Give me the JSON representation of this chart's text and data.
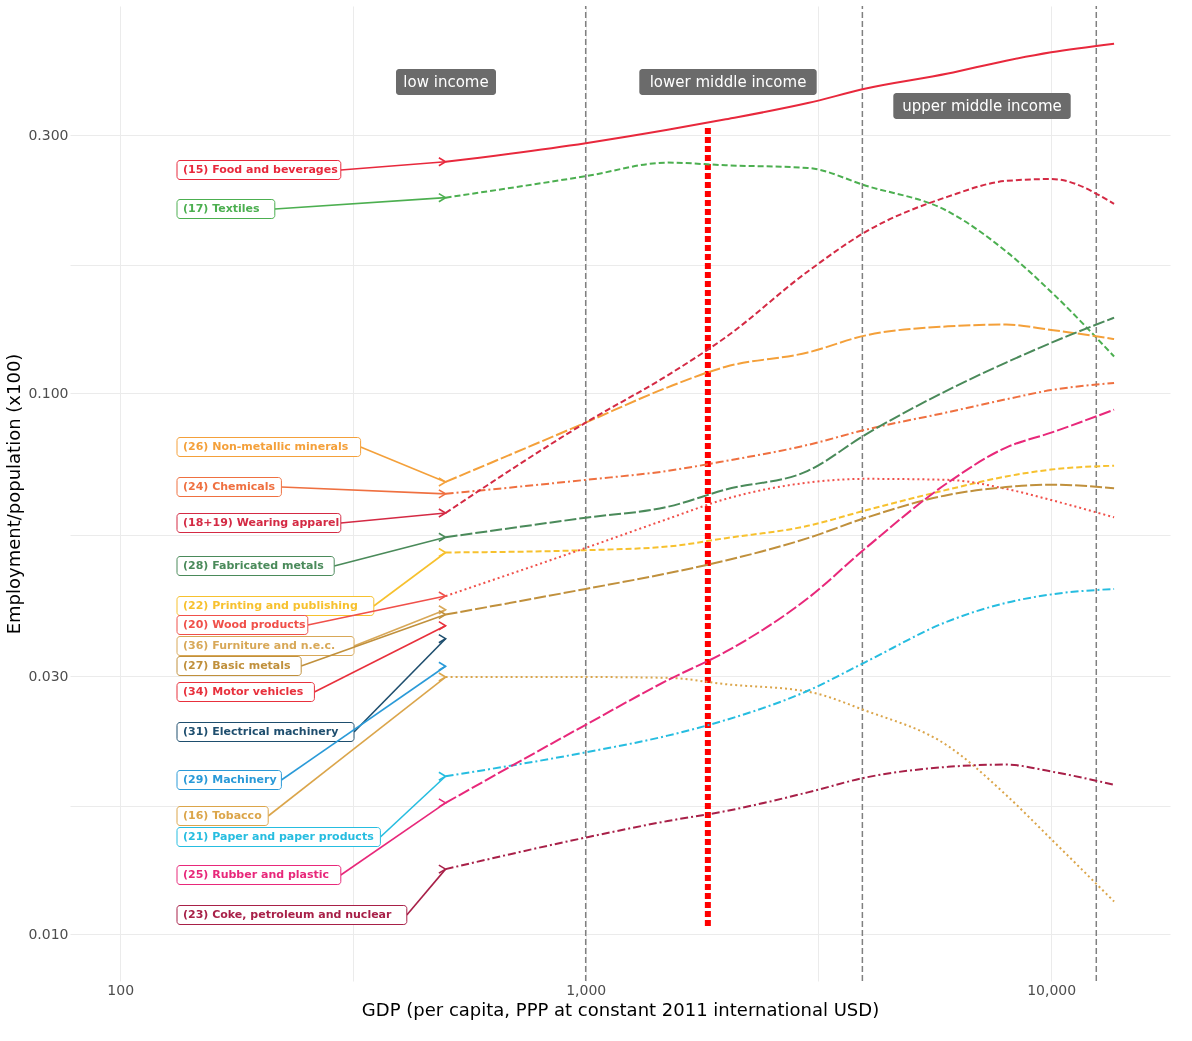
{
  "chart_data": {
    "type": "line",
    "xlabel": "GDP (per capita, PPP at constant 2011 international USD)",
    "ylabel": "Employment/population (x100)",
    "log": "xy",
    "grid": true,
    "legend": false,
    "xlim": [
      78,
      18000
    ],
    "ylim": [
      0.0082,
      0.52
    ],
    "xticks": [
      {
        "value": 100,
        "label": "100"
      },
      {
        "value": 316.2,
        "label": null
      },
      {
        "value": 1000,
        "label": "1,000"
      },
      {
        "value": 3162,
        "label": null
      },
      {
        "value": 10000,
        "label": "10,000"
      }
    ],
    "yticks": [
      {
        "value": 0.01,
        "label": "0.010"
      },
      {
        "value": 0.0173,
        "label": null
      },
      {
        "value": 0.03,
        "label": "0.030"
      },
      {
        "value": 0.0548,
        "label": null
      },
      {
        "value": 0.1,
        "label": "0.100"
      },
      {
        "value": 0.173,
        "label": null
      },
      {
        "value": 0.3,
        "label": "0.300"
      }
    ],
    "x": [
      500,
      1000,
      1500,
      2000,
      3000,
      4000,
      6000,
      8000,
      10000,
      13650
    ],
    "series": [
      {
        "name": "(15) Food and beverages",
        "color": "#e8283c",
        "line_style": "solid",
        "values": [
          0.268,
          0.29,
          0.307,
          0.321,
          0.344,
          0.366,
          0.39,
          0.412,
          0.427,
          0.443
        ]
      },
      {
        "name": "(17) Textiles",
        "color": "#4caf50",
        "line_style": "dashed",
        "values": [
          0.23,
          0.252,
          0.267,
          0.264,
          0.261,
          0.242,
          0.217,
          0.183,
          0.154,
          0.117
        ]
      },
      {
        "name": "(26) Non-metallic minerals",
        "color": "#f4a03a",
        "line_style": "longdash",
        "values": [
          0.0686,
          0.0883,
          0.1026,
          0.112,
          0.119,
          0.128,
          0.133,
          0.134,
          0.131,
          0.126
        ]
      },
      {
        "name": "(24) Chemicals",
        "color": "#ef7040",
        "line_style": "dashdot",
        "values": [
          0.0652,
          0.0692,
          0.0719,
          0.075,
          0.0803,
          0.0857,
          0.0923,
          0.0975,
          0.1014,
          0.1045
        ]
      },
      {
        "name": "(18+19) Wearing apparel",
        "color": "#d42a44",
        "line_style": "dashed",
        "values": [
          0.0601,
          0.0883,
          0.108,
          0.127,
          0.168,
          0.199,
          0.231,
          0.247,
          0.249,
          0.224
        ]
      },
      {
        "name": "(28) Fabricated metals",
        "color": "#4a8a5a",
        "line_style": "longdash",
        "values": [
          0.0542,
          0.0589,
          0.0617,
          0.0664,
          0.0719,
          0.084,
          0.1014,
          0.114,
          0.124,
          0.138
        ]
      },
      {
        "name": "(22) Printing and publishing",
        "color": "#f7c12e",
        "line_style": "dashed",
        "values": [
          0.0508,
          0.0513,
          0.0521,
          0.054,
          0.0569,
          0.0608,
          0.0664,
          0.0702,
          0.0723,
          0.0735
        ]
      },
      {
        "name": "(20) Wood products",
        "color": "#f0504a",
        "line_style": "dotted",
        "values": [
          0.0422,
          0.0518,
          0.0586,
          0.0638,
          0.0684,
          0.0695,
          0.0692,
          0.0666,
          0.0635,
          0.059
        ]
      },
      {
        "name": "(36) Furniture and n.e.c.",
        "color": "#d8a858",
        "line_style": "longdash",
        "marker": "cross",
        "values": [
          0.0398,
          null,
          null,
          null,
          null,
          null,
          null,
          null,
          null,
          null
        ]
      },
      {
        "name": "(27) Basic metals",
        "color": "#c0903c",
        "line_style": "longdash",
        "values": [
          0.039,
          0.0435,
          0.0465,
          0.0491,
          0.054,
          0.0589,
          0.0649,
          0.0671,
          0.0678,
          0.0668
        ]
      },
      {
        "name": "(34) Motor vehicles",
        "color": "#e8303c",
        "line_style": "longdash",
        "marker": "cross",
        "values": [
          0.0372,
          null,
          null,
          null,
          null,
          null,
          null,
          null,
          null,
          null
        ]
      },
      {
        "name": "(31) Electrical machinery",
        "color": "#1e4e6e",
        "line_style": "longdash",
        "marker": "cross",
        "values": [
          0.0352,
          null,
          null,
          null,
          null,
          null,
          null,
          null,
          null,
          null
        ]
      },
      {
        "name": "(29) Machinery",
        "color": "#2a9ad8",
        "line_style": "longdash",
        "marker": "cross",
        "values": [
          0.0313,
          null,
          null,
          null,
          null,
          null,
          null,
          null,
          null,
          null
        ]
      },
      {
        "name": "(16) Tobacco",
        "color": "#dba54a",
        "line_style": "dotted",
        "values": [
          0.0299,
          0.0299,
          0.0298,
          0.029,
          0.0281,
          0.0259,
          0.0223,
          0.0181,
          0.015,
          0.0115
        ]
      },
      {
        "name": "(21) Paper and paper products",
        "color": "#26bde0",
        "line_style": "dashdot",
        "values": [
          0.0196,
          0.0217,
          0.0233,
          0.0249,
          0.0282,
          0.0319,
          0.0379,
          0.041,
          0.0425,
          0.0435
        ]
      },
      {
        "name": "(25) Rubber and plastic",
        "color": "#e8287a",
        "line_style": "longdash",
        "values": [
          0.0175,
          0.0244,
          0.0295,
          0.0333,
          0.0418,
          0.0518,
          0.0684,
          0.0794,
          0.0846,
          0.0933
        ]
      },
      {
        "name": "(23) Coke,  petroleum and nuclear",
        "color": "#a82048",
        "line_style": "dashdot",
        "values": [
          0.0132,
          0.0151,
          0.0162,
          0.0169,
          0.0183,
          0.0195,
          0.0204,
          0.0206,
          0.02,
          0.0189
        ]
      }
    ],
    "ref_lines": [
      {
        "axis": "x",
        "value": 1000,
        "color": "#808080",
        "line_style": "dashed"
      },
      {
        "axis": "x",
        "value": 1830,
        "color": "#ff0000",
        "line_style": "dashed"
      },
      {
        "axis": "x",
        "value": 3930,
        "color": "#808080",
        "line_style": "dashed"
      },
      {
        "axis": "x",
        "value": 12500,
        "color": "#808080",
        "line_style": "dashed"
      }
    ],
    "annotations": [
      "low income",
      "lower middle income",
      "upper middle income"
    ]
  }
}
